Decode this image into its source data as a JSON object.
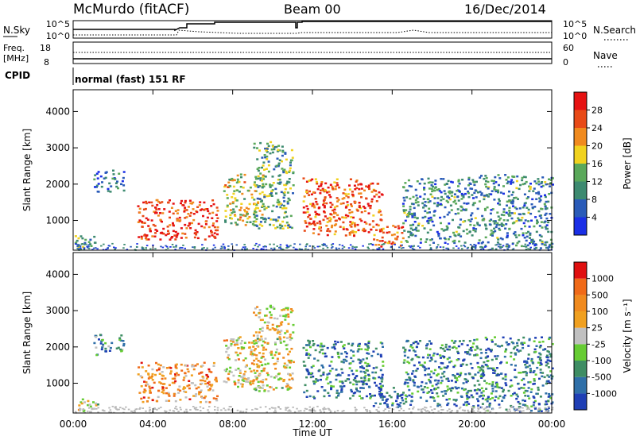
{
  "header": {
    "station": "McMurdo (fitACF)",
    "beam": "Beam 00",
    "date": "16/Dec/2014",
    "cpid_label": "CPID",
    "cpid_value": "normal (fast) 151 RF"
  },
  "status_panels": {
    "nsky_label": "N.Sky",
    "nsky_ticks": [
      "10^5",
      "10^0"
    ],
    "nsearch_label": "N.Search",
    "nsearch_ticks": [
      "10^5",
      "10^0"
    ],
    "freq_label": "Freq.",
    "freq_unit": "[MHz]",
    "freq_ticks": [
      "18",
      "8"
    ],
    "nave_label": "Nave",
    "nave_ticks": [
      "60",
      "0"
    ]
  },
  "colors": {
    "power": [
      "#1a2fe6",
      "#2a5bb8",
      "#3d8a70",
      "#5aa85a",
      "#f1d21e",
      "#f08a1e",
      "#e84a17",
      "#e61212"
    ],
    "velocity": [
      "#1f3fb5",
      "#2f6fa8",
      "#3e8d63",
      "#66cc33",
      "#c0c0c0",
      "#f0a020",
      "#f08a1e",
      "#f06a18",
      "#e01010"
    ]
  },
  "chart_data": [
    {
      "type": "heatmap",
      "title": "",
      "xlabel": "",
      "ylabel": "Slant Range [km]",
      "x_ticks": [
        "00:00",
        "04:00",
        "08:00",
        "12:00",
        "16:00",
        "20:00",
        "00:00"
      ],
      "y_ticks": [
        "1000",
        "2000",
        "3000",
        "4000"
      ],
      "xlim_hours": [
        0,
        24
      ],
      "ylim_km": [
        180,
        4600
      ],
      "colorbar": {
        "label": "Power [dB]",
        "ticks": [
          "4",
          "8",
          "12",
          "16",
          "20",
          "24",
          "28"
        ],
        "range": [
          0,
          30
        ]
      },
      "regions": [
        {
          "t0": 0.0,
          "t1": 1.2,
          "r0": 250,
          "r1": 600,
          "level": 0.35
        },
        {
          "t0": 1.0,
          "t1": 2.5,
          "r0": 1800,
          "r1": 2400,
          "level": 0.2
        },
        {
          "t0": 3.2,
          "t1": 7.2,
          "r0": 500,
          "r1": 1600,
          "level": 0.85
        },
        {
          "t0": 7.5,
          "t1": 9.5,
          "r0": 900,
          "r1": 2300,
          "level": 0.55
        },
        {
          "t0": 9.0,
          "t1": 11.0,
          "r0": 800,
          "r1": 3200,
          "level": 0.4
        },
        {
          "t0": 11.5,
          "t1": 15.5,
          "r0": 600,
          "r1": 2200,
          "level": 0.8
        },
        {
          "t0": 15.0,
          "t1": 16.5,
          "r0": 300,
          "r1": 900,
          "level": 0.75
        },
        {
          "t0": 16.5,
          "t1": 20.0,
          "r0": 400,
          "r1": 2200,
          "level": 0.3
        },
        {
          "t0": 20.0,
          "t1": 24.0,
          "r0": 250,
          "r1": 2300,
          "level": 0.3
        }
      ]
    },
    {
      "type": "heatmap",
      "title": "",
      "xlabel": "Time UT",
      "ylabel": "Slant Range [km]",
      "x_ticks": [
        "00:00",
        "04:00",
        "08:00",
        "12:00",
        "16:00",
        "20:00",
        "00:00"
      ],
      "y_ticks": [
        "1000",
        "2000",
        "3000",
        "4000"
      ],
      "xlim_hours": [
        0,
        24
      ],
      "ylim_km": [
        180,
        4600
      ],
      "colorbar": {
        "label": "Velocity [m s⁻¹]",
        "ticks": [
          "1000",
          "500",
          "100",
          "25",
          "-25",
          "-100",
          "-500",
          "-1000"
        ],
        "range": [
          -1000,
          1000
        ]
      },
      "regions": [
        {
          "t0": 0.0,
          "t1": 1.2,
          "r0": 250,
          "r1": 600,
          "level": 0.5
        },
        {
          "t0": 1.0,
          "t1": 2.5,
          "r0": 1800,
          "r1": 2400,
          "level": 0.3
        },
        {
          "t0": 3.2,
          "t1": 7.2,
          "r0": 500,
          "r1": 1600,
          "level": 0.7
        },
        {
          "t0": 7.5,
          "t1": 9.5,
          "r0": 900,
          "r1": 2300,
          "level": 0.6
        },
        {
          "t0": 9.0,
          "t1": 11.0,
          "r0": 800,
          "r1": 3200,
          "level": 0.55
        },
        {
          "t0": 11.5,
          "t1": 15.5,
          "r0": 600,
          "r1": 2200,
          "level": 0.2
        },
        {
          "t0": 15.0,
          "t1": 16.5,
          "r0": 300,
          "r1": 900,
          "level": 0.15
        },
        {
          "t0": 16.5,
          "t1": 20.0,
          "r0": 400,
          "r1": 2200,
          "level": 0.2
        },
        {
          "t0": 20.0,
          "t1": 24.0,
          "r0": 250,
          "r1": 2300,
          "level": 0.2
        }
      ]
    }
  ]
}
